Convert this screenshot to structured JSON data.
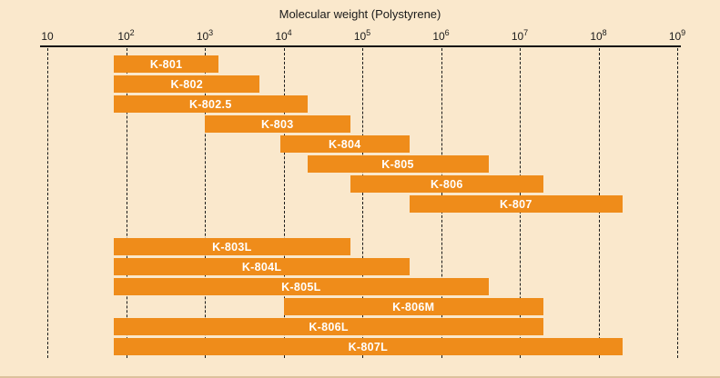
{
  "chart_data": {
    "type": "bar",
    "orientation": "horizontal",
    "title": "Molecular weight (Polystyrene)",
    "x_axis": {
      "scale": "log10",
      "min": 10,
      "max": 1000000000,
      "min_exp": 1,
      "max_exp": 9,
      "tick_labels": [
        "10",
        "10^2",
        "10^3",
        "10^4",
        "10^5",
        "10^6",
        "10^7",
        "10^8",
        "10^9"
      ],
      "gridlines": "dashed-vertical-at-each-decade"
    },
    "legend": "none",
    "bars": [
      {
        "label": "K-801",
        "group": 1,
        "mw_min": 70,
        "mw_max": 1500
      },
      {
        "label": "K-802",
        "group": 1,
        "mw_min": 70,
        "mw_max": 5000
      },
      {
        "label": "K-802.5",
        "group": 1,
        "mw_min": 70,
        "mw_max": 20000
      },
      {
        "label": "K-803",
        "group": 1,
        "mw_min": 1000,
        "mw_max": 70000
      },
      {
        "label": "K-804",
        "group": 1,
        "mw_min": 9000,
        "mw_max": 400000
      },
      {
        "label": "K-805",
        "group": 1,
        "mw_min": 20000,
        "mw_max": 4000000
      },
      {
        "label": "K-806",
        "group": 1,
        "mw_min": 70000,
        "mw_max": 20000000
      },
      {
        "label": "K-807",
        "group": 1,
        "mw_min": 400000,
        "mw_max": 200000000
      },
      {
        "label": "K-803L",
        "group": 2,
        "mw_min": 70,
        "mw_max": 70000
      },
      {
        "label": "K-804L",
        "group": 2,
        "mw_min": 70,
        "mw_max": 400000
      },
      {
        "label": "K-805L",
        "group": 2,
        "mw_min": 70,
        "mw_max": 4000000
      },
      {
        "label": "K-806M",
        "group": 2,
        "mw_min": 10000,
        "mw_max": 20000000
      },
      {
        "label": "K-806L",
        "group": 2,
        "mw_min": 70,
        "mw_max": 20000000
      },
      {
        "label": "K-807L",
        "group": 2,
        "mw_min": 70,
        "mw_max": 200000000
      }
    ],
    "colors": {
      "background": "#FAE8CC",
      "bar": "#EF8C1A",
      "bar_label": "#FFFFFF",
      "axis_text": "#1A1A1A",
      "gridline": "#1A1A1A"
    }
  }
}
